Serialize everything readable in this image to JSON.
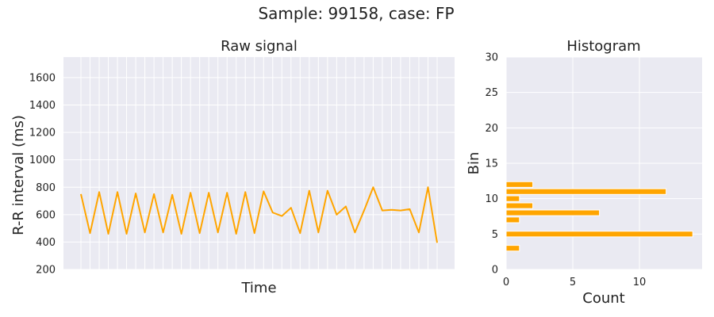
{
  "figure": {
    "title": "Sample: 99158, case: FP"
  },
  "colors": {
    "background": "#eaeaf2",
    "grid": "#ffffff",
    "series": "#ffa500",
    "text": "#222222"
  },
  "chart_data": [
    {
      "type": "line",
      "title": "Raw signal",
      "xlabel": "Time",
      "ylabel": "R-R interval (ms)",
      "ylim": [
        200,
        1750
      ],
      "yticks": [
        200,
        400,
        600,
        800,
        1000,
        1200,
        1400,
        1600
      ],
      "x_tick_labels_shown": false,
      "grid": true,
      "series": [
        {
          "values": [
            750,
            465,
            765,
            460,
            765,
            460,
            755,
            470,
            750,
            470,
            745,
            460,
            760,
            465,
            760,
            470,
            760,
            460,
            765,
            465,
            770,
            615,
            590,
            650,
            465,
            775,
            470,
            775,
            600,
            660,
            470,
            630,
            800,
            630,
            635,
            630,
            640,
            470,
            800,
            395
          ]
        }
      ]
    },
    {
      "type": "bar",
      "orientation": "horizontal",
      "title": "Histogram",
      "xlabel": "Count",
      "ylabel": "Bin",
      "xlim": [
        0,
        14.7
      ],
      "ylim": [
        0,
        30
      ],
      "xticks": [
        0,
        5,
        10
      ],
      "yticks": [
        0,
        5,
        10,
        15,
        20,
        25,
        30
      ],
      "grid": true,
      "bins": [
        3,
        5,
        7,
        8,
        9,
        10,
        11,
        12
      ],
      "counts": [
        1,
        14,
        1,
        7,
        2,
        1,
        12,
        2
      ]
    }
  ]
}
